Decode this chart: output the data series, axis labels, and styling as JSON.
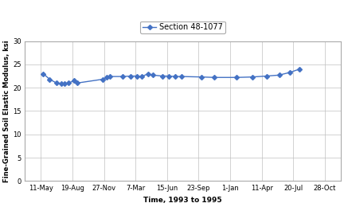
{
  "x_labels": [
    "11-May",
    "19-Aug",
    "27-Nov",
    "7-Mar",
    "15-Jun",
    "23-Sep",
    "1-Jan",
    "11-Apr",
    "20-Jul",
    "28-Oct"
  ],
  "x_pts": [
    0.08,
    0.28,
    0.5,
    0.65,
    0.75,
    0.88,
    1.05,
    1.15,
    1.95,
    2.1,
    2.2,
    2.6,
    2.85,
    3.05,
    3.2,
    3.4,
    3.55,
    3.85,
    4.05,
    4.25,
    4.45,
    5.1,
    5.5,
    6.2,
    6.7,
    7.15,
    7.55,
    7.9,
    8.2
  ],
  "y_pts": [
    23.0,
    21.8,
    21.0,
    20.9,
    20.9,
    21.0,
    21.5,
    21.0,
    21.8,
    22.3,
    22.4,
    22.4,
    22.5,
    22.5,
    22.4,
    23.0,
    22.7,
    22.5,
    22.5,
    22.4,
    22.4,
    22.3,
    22.2,
    22.2,
    22.3,
    22.5,
    22.7,
    23.3,
    24.0
  ],
  "series_label": "Section 48-1077",
  "xlabel": "Time, 1993 to 1995",
  "ylabel": "Fine-Grained Soil Elastic Modulus, ksi",
  "ylim": [
    0,
    30
  ],
  "yticks": [
    0,
    5,
    10,
    15,
    20,
    25,
    30
  ],
  "xlim": [
    -0.5,
    9.5
  ],
  "line_color": "#4472C4",
  "marker": "D",
  "marker_size": 3.0,
  "line_width": 1.0,
  "background_color": "#ffffff",
  "grid_color": "#c0c0c0",
  "tick_fontsize": 6.0,
  "label_fontsize": 6.5,
  "legend_fontsize": 7.0
}
